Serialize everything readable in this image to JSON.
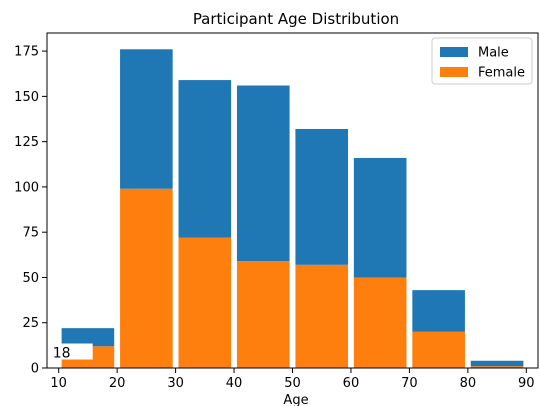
{
  "chart_data": {
    "type": "bar",
    "stacked": true,
    "title": "Participant Age Distribution",
    "xlabel": "Age",
    "ylabel": "",
    "xlim": [
      8,
      92
    ],
    "ylim": [
      0,
      185
    ],
    "bin_width": 10,
    "xticks": [
      10,
      20,
      30,
      40,
      50,
      60,
      70,
      80,
      90
    ],
    "yticks": [
      0,
      25,
      50,
      75,
      100,
      125,
      150,
      175
    ],
    "bins": [
      {
        "start": 10,
        "end": 20
      },
      {
        "start": 20,
        "end": 30
      },
      {
        "start": 30,
        "end": 40
      },
      {
        "start": 40,
        "end": 50
      },
      {
        "start": 50,
        "end": 60
      },
      {
        "start": 60,
        "end": 70
      },
      {
        "start": 70,
        "end": 80
      },
      {
        "start": 80,
        "end": 90
      }
    ],
    "series": [
      {
        "name": "Female",
        "color": "#ff7f0e",
        "values": [
          12,
          99,
          72,
          59,
          57,
          50,
          20,
          1
        ]
      },
      {
        "name": "Male",
        "color": "#1f77b4",
        "values": [
          10,
          77,
          87,
          97,
          75,
          66,
          23,
          3
        ]
      }
    ],
    "legend": {
      "placement": "top-right",
      "entries": [
        "Male",
        "Female"
      ]
    },
    "annotations": [
      {
        "text": "18",
        "x": 10,
        "y": 8
      }
    ],
    "grid": false
  }
}
